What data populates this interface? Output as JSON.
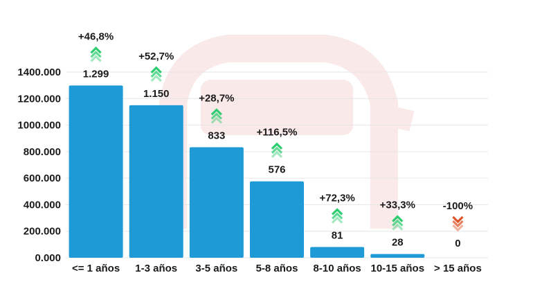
{
  "chart_data": {
    "type": "bar",
    "categories": [
      "<= 1 años",
      "1-3 años",
      "3-5 años",
      "5-8 años",
      "8-10 años",
      "10-15 años",
      "> 15 años"
    ],
    "values": [
      1299,
      1150,
      833,
      576,
      81,
      28,
      0
    ],
    "value_labels": [
      "1.299",
      "1.150",
      "833",
      "576",
      "81",
      "28",
      "0"
    ],
    "changes": [
      "+46,8%",
      "+52,7%",
      "+28,7%",
      "+116,5%",
      "+72,3%",
      "+33,3%",
      "-100%"
    ],
    "change_direction": [
      "up",
      "up",
      "up",
      "up",
      "up",
      "up",
      "down"
    ],
    "yticks": [
      0,
      200,
      400,
      600,
      800,
      1000,
      1200,
      1400
    ],
    "ytick_labels": [
      "0.000",
      "200.000",
      "400.000",
      "600.000",
      "800.000",
      "1000.000",
      "1200.000",
      "1400.000"
    ],
    "ylim": [
      0,
      1400
    ],
    "grid": true,
    "colors": {
      "bar": "#1e9ad6",
      "up": "#2ecc71",
      "down": "#e0542b",
      "grid": "#e6e6e6",
      "text": "#1a1a1a"
    }
  }
}
